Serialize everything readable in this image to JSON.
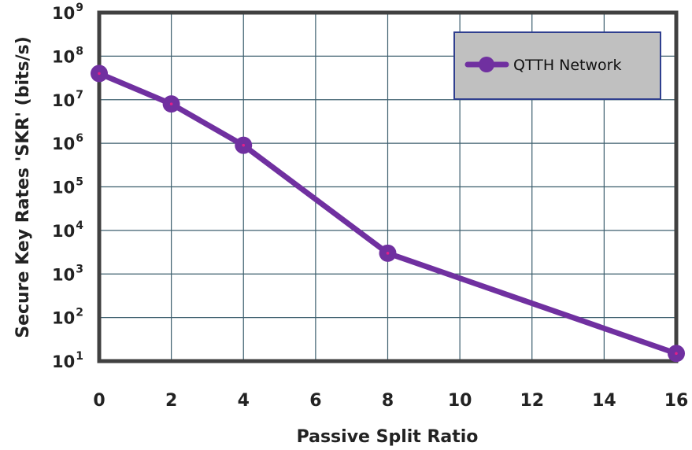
{
  "chart_data": {
    "type": "line",
    "xlabel": "Passive Split Ratio",
    "ylabel": "Secure Key Rates 'SKR' (bits/s)",
    "xlim": [
      0,
      16
    ],
    "ylim": [
      10,
      1000000000
    ],
    "yscale": "log",
    "x_ticks": [
      "0",
      "2",
      "4",
      "6",
      "8",
      "10",
      "12",
      "14",
      "16"
    ],
    "y_ticks": [
      {
        "base": "10",
        "exp": "9",
        "value": 1000000000
      },
      {
        "base": "10",
        "exp": "8",
        "value": 100000000
      },
      {
        "base": "10",
        "exp": "7",
        "value": 10000000
      },
      {
        "base": "10",
        "exp": "6",
        "value": 1000000
      },
      {
        "base": "10",
        "exp": "5",
        "value": 100000
      },
      {
        "base": "10",
        "exp": "4",
        "value": 10000
      },
      {
        "base": "10",
        "exp": "3",
        "value": 1000
      },
      {
        "base": "10",
        "exp": "2",
        "value": 100
      },
      {
        "base": "10",
        "exp": "1",
        "value": 10
      }
    ],
    "grid": true,
    "legend_position": "top-right",
    "series": [
      {
        "name": "QTTH Network",
        "color": "#7030A0",
        "marker_center_color": "#E0208A",
        "x": [
          0,
          2,
          4,
          8,
          16
        ],
        "y": [
          40000000,
          8000000,
          900000,
          3000,
          15
        ]
      }
    ]
  },
  "colors": {
    "plot_background": "#ffffff",
    "grid": "#3d5f6e",
    "frame": "#404040",
    "legend_background": "#c0c0c0",
    "legend_border": "#2f3f8f"
  }
}
